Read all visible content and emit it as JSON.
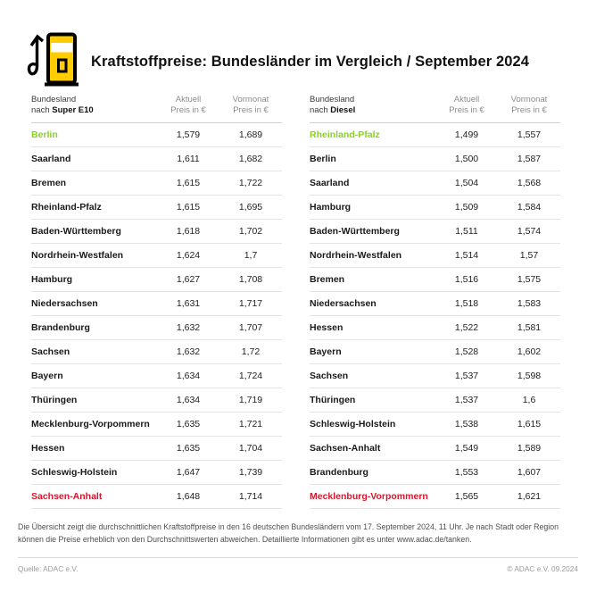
{
  "header": {
    "title": "Kraftstoffpreise: Bundesländer im Vergleich / September 2024",
    "icon": "fuel-pump-icon"
  },
  "colors": {
    "yellow": "#FFCC00",
    "green": "#87D31E",
    "red": "#D2192D"
  },
  "chart_data": [
    {
      "type": "table",
      "name": "super-e10",
      "header": {
        "col_state_line1": "Bundesland",
        "col_state_prefix": "nach ",
        "col_state_fuel": "Super E10",
        "col_current_line1": "Aktuell",
        "col_current_line2": "Preis in €",
        "col_previous_line1": "Vormonat",
        "col_previous_line2": "Preis in €"
      },
      "rows": [
        {
          "state": "Berlin",
          "aktuell": "1,579",
          "vormonat": "1,689",
          "highlight": "green"
        },
        {
          "state": "Saarland",
          "aktuell": "1,611",
          "vormonat": "1,682"
        },
        {
          "state": "Bremen",
          "aktuell": "1,615",
          "vormonat": "1,722"
        },
        {
          "state": "Rheinland-Pfalz",
          "aktuell": "1,615",
          "vormonat": "1,695"
        },
        {
          "state": "Baden-Württemberg",
          "aktuell": "1,618",
          "vormonat": "1,702"
        },
        {
          "state": "Nordrhein-Westfalen",
          "aktuell": "1,624",
          "vormonat": "1,7"
        },
        {
          "state": "Hamburg",
          "aktuell": "1,627",
          "vormonat": "1,708"
        },
        {
          "state": "Niedersachsen",
          "aktuell": "1,631",
          "vormonat": "1,717"
        },
        {
          "state": "Brandenburg",
          "aktuell": "1,632",
          "vormonat": "1,707"
        },
        {
          "state": "Sachsen",
          "aktuell": "1,632",
          "vormonat": "1,72"
        },
        {
          "state": "Bayern",
          "aktuell": "1,634",
          "vormonat": "1,724"
        },
        {
          "state": "Thüringen",
          "aktuell": "1,634",
          "vormonat": "1,719"
        },
        {
          "state": "Mecklenburg-Vorpommern",
          "aktuell": "1,635",
          "vormonat": "1,721"
        },
        {
          "state": "Hessen",
          "aktuell": "1,635",
          "vormonat": "1,704"
        },
        {
          "state": "Schleswig-Holstein",
          "aktuell": "1,647",
          "vormonat": "1,739"
        },
        {
          "state": "Sachsen-Anhalt",
          "aktuell": "1,648",
          "vormonat": "1,714",
          "highlight": "red"
        }
      ]
    },
    {
      "type": "table",
      "name": "diesel",
      "header": {
        "col_state_line1": "Bundesland",
        "col_state_prefix": "nach ",
        "col_state_fuel": "Diesel",
        "col_current_line1": "Aktuell",
        "col_current_line2": "Preis in €",
        "col_previous_line1": "Vormonat",
        "col_previous_line2": "Preis in €"
      },
      "rows": [
        {
          "state": "Rheinland-Pfalz",
          "aktuell": "1,499",
          "vormonat": "1,557",
          "highlight": "green"
        },
        {
          "state": "Berlin",
          "aktuell": "1,500",
          "vormonat": "1,587"
        },
        {
          "state": "Saarland",
          "aktuell": "1,504",
          "vormonat": "1,568"
        },
        {
          "state": "Hamburg",
          "aktuell": "1,509",
          "vormonat": "1,584"
        },
        {
          "state": "Baden-Württemberg",
          "aktuell": "1,511",
          "vormonat": "1,574"
        },
        {
          "state": "Nordrhein-Westfalen",
          "aktuell": "1,514",
          "vormonat": "1,57"
        },
        {
          "state": "Bremen",
          "aktuell": "1,516",
          "vormonat": "1,575"
        },
        {
          "state": "Niedersachsen",
          "aktuell": "1,518",
          "vormonat": "1,583"
        },
        {
          "state": "Hessen",
          "aktuell": "1,522",
          "vormonat": "1,581"
        },
        {
          "state": "Bayern",
          "aktuell": "1,528",
          "vormonat": "1,602"
        },
        {
          "state": "Sachsen",
          "aktuell": "1,537",
          "vormonat": "1,598"
        },
        {
          "state": "Thüringen",
          "aktuell": "1,537",
          "vormonat": "1,6"
        },
        {
          "state": "Schleswig-Holstein",
          "aktuell": "1,538",
          "vormonat": "1,615"
        },
        {
          "state": "Sachsen-Anhalt",
          "aktuell": "1,549",
          "vormonat": "1,589"
        },
        {
          "state": "Brandenburg",
          "aktuell": "1,553",
          "vormonat": "1,607"
        },
        {
          "state": "Mecklenburg-Vorpommern",
          "aktuell": "1,565",
          "vormonat": "1,621",
          "highlight": "red"
        }
      ]
    }
  ],
  "footnote": {
    "text": "Die Übersicht zeigt die durchschnittlichen Kraftstoffpreise in den 16 deutschen Bundesländern vom 17. September 2024, 11 Uhr. Je nach Stadt oder Region können die Preise erheblich von den Durchschnittswerten abweichen. Detaillierte Informationen gibt es unter www.adac.de/tanken."
  },
  "footer": {
    "source": "Quelle: ADAC e.V.",
    "copyright": "© ADAC e.V. 09.2024"
  }
}
